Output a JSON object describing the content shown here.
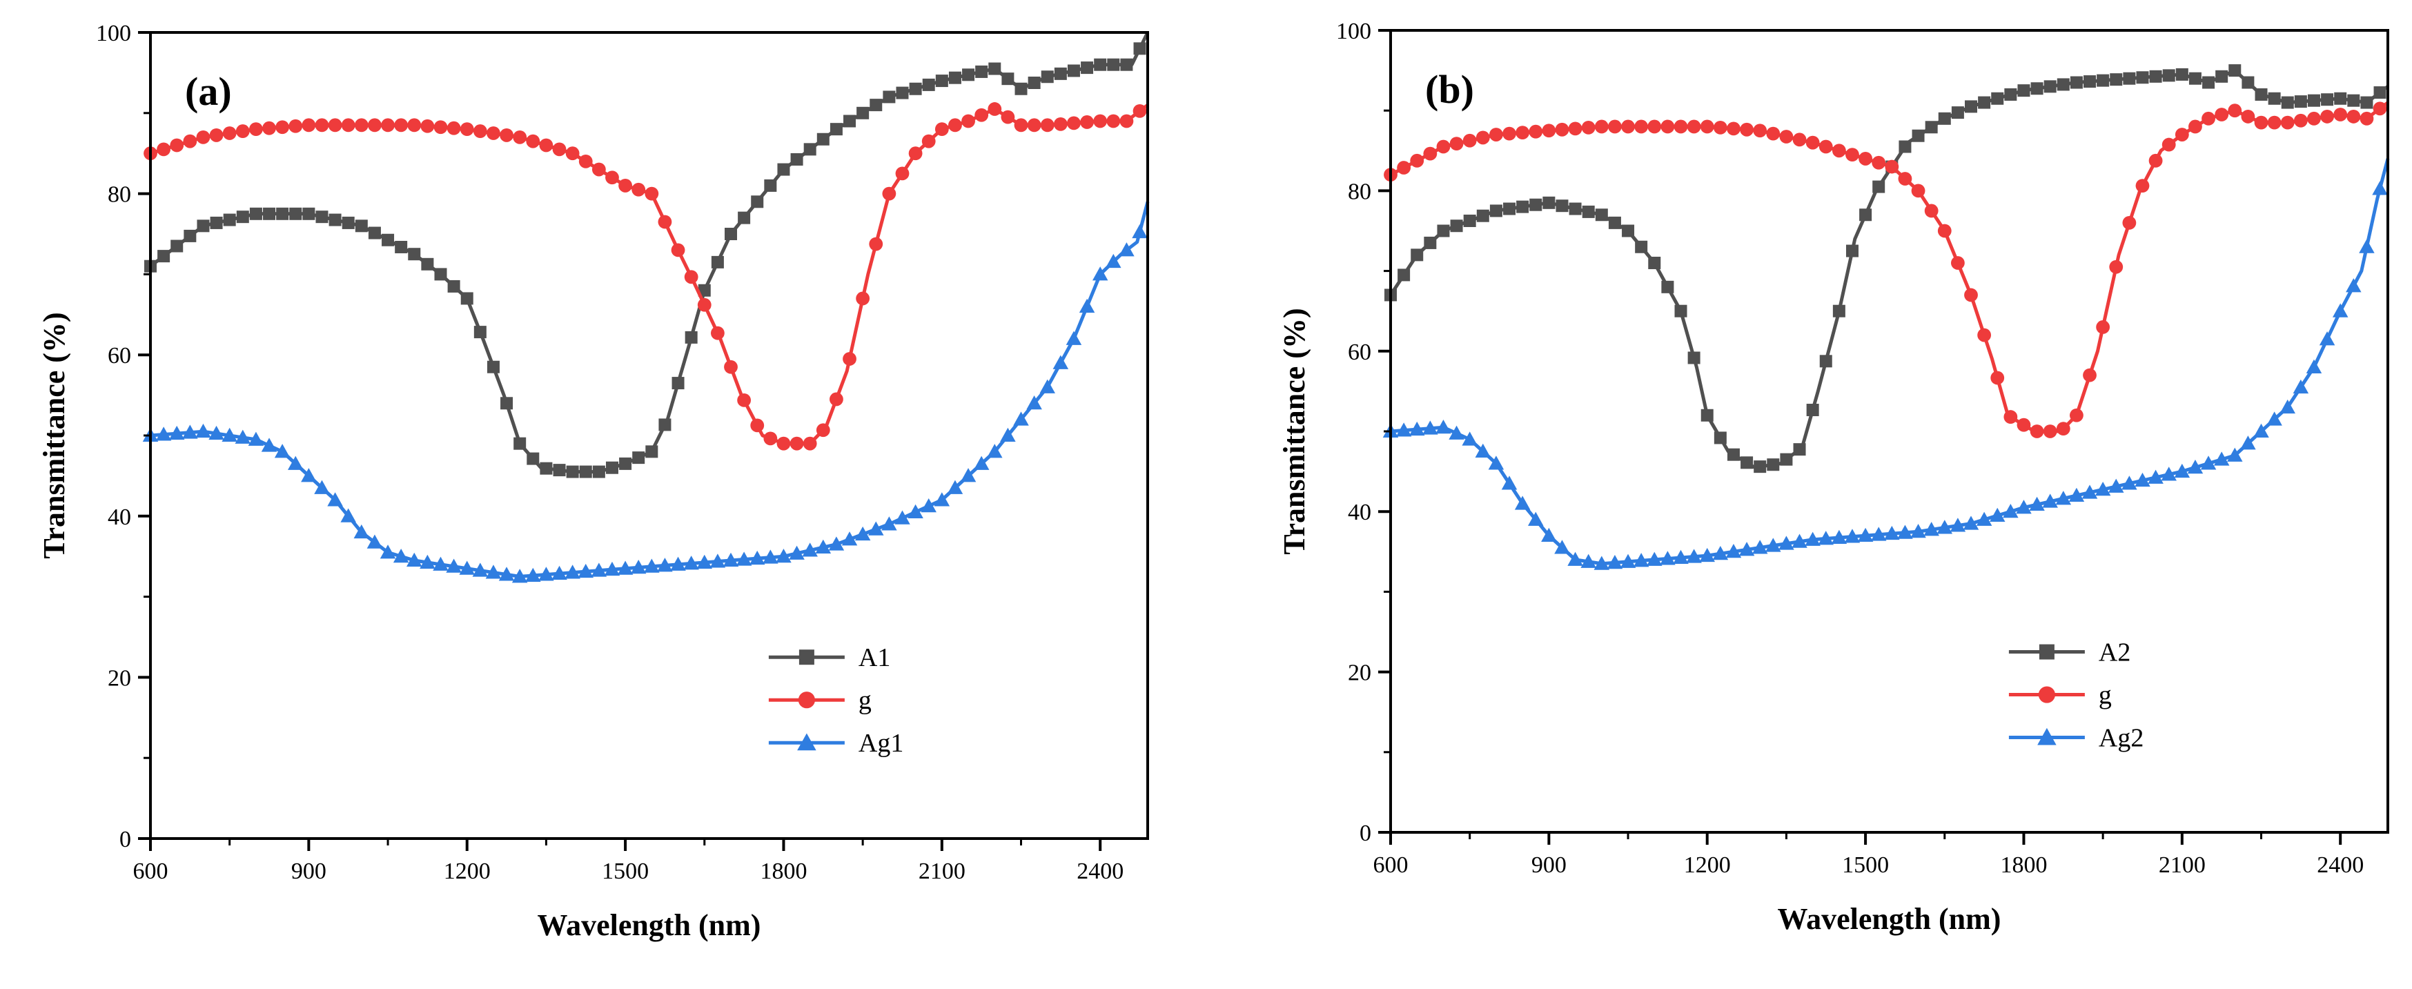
{
  "colors": {
    "s1": "#505050",
    "s2": "#ee3b3b",
    "s3": "#2f7de0"
  },
  "chart_data": [
    {
      "type": "line",
      "panel_label": "(a)",
      "xlabel": "Wavelength (nm)",
      "ylabel": "Transmittance (%)",
      "xlim": [
        600,
        2490
      ],
      "ylim": [
        0,
        100
      ],
      "xticks": [
        600,
        900,
        1200,
        1500,
        1800,
        2100,
        2400
      ],
      "xtick_labels": [
        "600",
        "900",
        "1200",
        "1500",
        "1800",
        "2100",
        "2400"
      ],
      "yticks": [
        0,
        20,
        40,
        60,
        80,
        100
      ],
      "ytick_labels": [
        "0",
        "20",
        "40",
        "60",
        "80",
        "100"
      ],
      "legend_position": "bottom-right",
      "series": [
        {
          "name": "A1",
          "marker": "square",
          "points": [
            [
              600,
              71
            ],
            [
              700,
              76
            ],
            [
              800,
              77.5
            ],
            [
              900,
              77.5
            ],
            [
              1000,
              76
            ],
            [
              1100,
              72.5
            ],
            [
              1150,
              70
            ],
            [
              1200,
              67
            ],
            [
              1230,
              62
            ],
            [
              1270,
              55
            ],
            [
              1300,
              49
            ],
            [
              1340,
              46
            ],
            [
              1400,
              45.5
            ],
            [
              1450,
              45.5
            ],
            [
              1500,
              46.5
            ],
            [
              1550,
              48
            ],
            [
              1580,
              52
            ],
            [
              1620,
              61
            ],
            [
              1650,
              68
            ],
            [
              1700,
              75
            ],
            [
              1750,
              79
            ],
            [
              1800,
              83
            ],
            [
              1900,
              88
            ],
            [
              2000,
              92
            ],
            [
              2100,
              94
            ],
            [
              2200,
              95.5
            ],
            [
              2250,
              93
            ],
            [
              2300,
              94.5
            ],
            [
              2400,
              96
            ],
            [
              2460,
              96
            ],
            [
              2490,
              100
            ]
          ]
        },
        {
          "name": "g",
          "marker": "circle",
          "points": [
            [
              600,
              85
            ],
            [
              700,
              87
            ],
            [
              800,
              88
            ],
            [
              900,
              88.5
            ],
            [
              1000,
              88.5
            ],
            [
              1100,
              88.5
            ],
            [
              1200,
              88
            ],
            [
              1300,
              87
            ],
            [
              1400,
              85
            ],
            [
              1500,
              81
            ],
            [
              1550,
              80
            ],
            [
              1600,
              73
            ],
            [
              1630,
              69
            ],
            [
              1680,
              62
            ],
            [
              1720,
              55
            ],
            [
              1760,
              50
            ],
            [
              1800,
              49
            ],
            [
              1850,
              49
            ],
            [
              1880,
              51
            ],
            [
              1920,
              58
            ],
            [
              1960,
              70
            ],
            [
              2000,
              80
            ],
            [
              2050,
              85
            ],
            [
              2100,
              88
            ],
            [
              2150,
              89
            ],
            [
              2200,
              90.5
            ],
            [
              2250,
              88.5
            ],
            [
              2300,
              88.5
            ],
            [
              2400,
              89
            ],
            [
              2450,
              89
            ],
            [
              2490,
              91
            ]
          ]
        },
        {
          "name": "Ag1",
          "marker": "triangle",
          "points": [
            [
              600,
              50
            ],
            [
              700,
              50.5
            ],
            [
              800,
              49.5
            ],
            [
              850,
              48
            ],
            [
              900,
              45
            ],
            [
              950,
              42
            ],
            [
              1000,
              38
            ],
            [
              1050,
              35.5
            ],
            [
              1100,
              34.5
            ],
            [
              1200,
              33.5
            ],
            [
              1300,
              32.5
            ],
            [
              1400,
              33
            ],
            [
              1500,
              33.5
            ],
            [
              1600,
              34
            ],
            [
              1700,
              34.5
            ],
            [
              1800,
              35
            ],
            [
              1900,
              36.5
            ],
            [
              2000,
              39
            ],
            [
              2100,
              42
            ],
            [
              2150,
              45
            ],
            [
              2200,
              48
            ],
            [
              2250,
              52
            ],
            [
              2300,
              56
            ],
            [
              2350,
              62
            ],
            [
              2400,
              70
            ],
            [
              2440,
              72.5
            ],
            [
              2470,
              74
            ],
            [
              2490,
              79
            ]
          ]
        }
      ],
      "legend": [
        {
          "label": "A1",
          "marker": "square",
          "color": "#505050"
        },
        {
          "label": "g",
          "marker": "circle",
          "color": "#ee3b3b"
        },
        {
          "label": "Ag1",
          "marker": "triangle",
          "color": "#2f7de0"
        }
      ]
    },
    {
      "type": "line",
      "panel_label": "(b)",
      "xlabel": "Wavelength (nm)",
      "ylabel": "Transmittance (%)",
      "xlim": [
        600,
        2490
      ],
      "ylim": [
        0,
        100
      ],
      "xticks": [
        600,
        900,
        1200,
        1500,
        1800,
        2100,
        2400
      ],
      "xtick_labels": [
        "600",
        "900",
        "1200",
        "1500",
        "1800",
        "2100",
        "2400"
      ],
      "yticks": [
        0,
        20,
        40,
        60,
        80,
        100
      ],
      "ytick_labels": [
        "0",
        "20",
        "40",
        "60",
        "80",
        "100"
      ],
      "legend_position": "bottom-right",
      "series": [
        {
          "name": "A2",
          "marker": "square",
          "points": [
            [
              600,
              67
            ],
            [
              650,
              72
            ],
            [
              700,
              75
            ],
            [
              800,
              77.5
            ],
            [
              900,
              78.5
            ],
            [
              1000,
              77
            ],
            [
              1050,
              75
            ],
            [
              1100,
              71
            ],
            [
              1150,
              65
            ],
            [
              1180,
              58
            ],
            [
              1200,
              52
            ],
            [
              1240,
              47.5
            ],
            [
              1290,
              45.5
            ],
            [
              1340,
              46
            ],
            [
              1380,
              48
            ],
            [
              1410,
              55
            ],
            [
              1450,
              65
            ],
            [
              1480,
              74
            ],
            [
              1520,
              80
            ],
            [
              1580,
              86
            ],
            [
              1650,
              89
            ],
            [
              1700,
              90.5
            ],
            [
              1800,
              92.5
            ],
            [
              1900,
              93.5
            ],
            [
              2000,
              94
            ],
            [
              2100,
              94.5
            ],
            [
              2150,
              93.5
            ],
            [
              2200,
              95
            ],
            [
              2250,
              92
            ],
            [
              2300,
              91
            ],
            [
              2400,
              91.5
            ],
            [
              2450,
              91
            ],
            [
              2490,
              93
            ]
          ]
        },
        {
          "name": "g",
          "marker": "circle",
          "points": [
            [
              600,
              82
            ],
            [
              700,
              85.5
            ],
            [
              800,
              87
            ],
            [
              900,
              87.5
            ],
            [
              1000,
              88
            ],
            [
              1100,
              88
            ],
            [
              1200,
              88
            ],
            [
              1300,
              87.5
            ],
            [
              1400,
              86
            ],
            [
              1500,
              84
            ],
            [
              1550,
              83
            ],
            [
              1600,
              80
            ],
            [
              1650,
              75
            ],
            [
              1700,
              67
            ],
            [
              1740,
              59
            ],
            [
              1770,
              52
            ],
            [
              1820,
              50
            ],
            [
              1870,
              50
            ],
            [
              1900,
              52
            ],
            [
              1940,
              60
            ],
            [
              1980,
              72
            ],
            [
              2020,
              80
            ],
            [
              2060,
              85
            ],
            [
              2100,
              87
            ],
            [
              2150,
              89
            ],
            [
              2200,
              90
            ],
            [
              2250,
              88.5
            ],
            [
              2300,
              88.5
            ],
            [
              2400,
              89.5
            ],
            [
              2450,
              89
            ],
            [
              2490,
              91
            ]
          ]
        },
        {
          "name": "Ag2",
          "marker": "triangle",
          "points": [
            [
              600,
              50
            ],
            [
              700,
              50.5
            ],
            [
              750,
              49
            ],
            [
              800,
              46
            ],
            [
              850,
              41
            ],
            [
              900,
              37
            ],
            [
              950,
              34
            ],
            [
              1000,
              33.5
            ],
            [
              1100,
              34
            ],
            [
              1200,
              34.5
            ],
            [
              1300,
              35.5
            ],
            [
              1400,
              36.5
            ],
            [
              1500,
              37
            ],
            [
              1600,
              37.5
            ],
            [
              1700,
              38.5
            ],
            [
              1800,
              40.5
            ],
            [
              1900,
              42
            ],
            [
              2000,
              43.5
            ],
            [
              2100,
              45
            ],
            [
              2200,
              47
            ],
            [
              2250,
              50
            ],
            [
              2300,
              53
            ],
            [
              2350,
              58
            ],
            [
              2400,
              65
            ],
            [
              2440,
              70
            ],
            [
              2470,
              79
            ],
            [
              2490,
              84
            ]
          ]
        }
      ],
      "legend": [
        {
          "label": "A2",
          "marker": "square",
          "color": "#505050"
        },
        {
          "label": "g",
          "marker": "circle",
          "color": "#ee3b3b"
        },
        {
          "label": "Ag2",
          "marker": "triangle",
          "color": "#2f7de0"
        }
      ]
    }
  ]
}
